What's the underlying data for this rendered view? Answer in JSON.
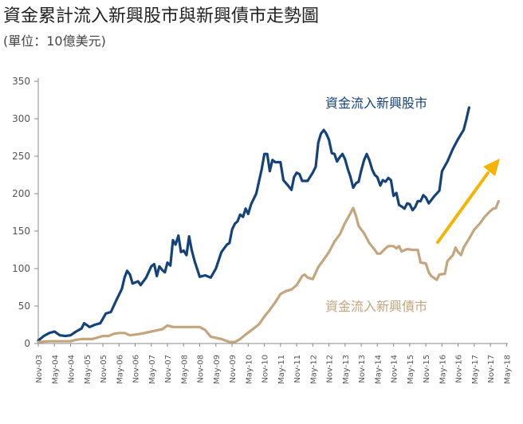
{
  "title": "資金累計流入新興股市與新興債市走勢圖",
  "subtitle": "(單位：10億美元)",
  "colors": {
    "equity": "#14427a",
    "bond": "#c4a57e",
    "arrow": "#f5b400",
    "axis": "#888888"
  },
  "chart_data": {
    "type": "line",
    "title": "資金累計流入新興股市與新興債市走勢圖",
    "subtitle": "(單位：10億美元)",
    "xlabel": "",
    "ylabel": "",
    "ylim": [
      0,
      350
    ],
    "yticks": [
      0,
      50,
      100,
      150,
      200,
      250,
      300,
      350
    ],
    "xlim": [
      2003.83,
      2018.37
    ],
    "grid": false,
    "legend": "inline labels",
    "x_tick_labels": [
      "Nov-03",
      "May-04",
      "Nov-04",
      "May-05",
      "Nov-05",
      "May-06",
      "Nov-06",
      "May-07",
      "Nov-07",
      "May-08",
      "Nov-08",
      "May-09",
      "Nov-09",
      "May-10",
      "Nov-10",
      "May-11",
      "Nov-11",
      "May-12",
      "Nov-12",
      "May-13",
      "Nov-13",
      "May-14",
      "Nov-14",
      "May-15",
      "Nov-15",
      "May-16",
      "Nov-16",
      "May-17",
      "Nov-17",
      "May-18"
    ],
    "series": [
      {
        "name": "資金流入新興股市",
        "color": "#14427a",
        "points": [
          [
            2003.83,
            4
          ],
          [
            2004.0,
            10
          ],
          [
            2004.17,
            14
          ],
          [
            2004.33,
            16
          ],
          [
            2004.5,
            11
          ],
          [
            2004.67,
            10
          ],
          [
            2004.83,
            11
          ],
          [
            2005.0,
            16
          ],
          [
            2005.17,
            20
          ],
          [
            2005.25,
            27
          ],
          [
            2005.42,
            22
          ],
          [
            2005.58,
            25
          ],
          [
            2005.75,
            27
          ],
          [
            2005.92,
            40
          ],
          [
            2006.08,
            42
          ],
          [
            2006.25,
            58
          ],
          [
            2006.42,
            73
          ],
          [
            2006.5,
            88
          ],
          [
            2006.58,
            97
          ],
          [
            2006.67,
            92
          ],
          [
            2006.75,
            80
          ],
          [
            2006.92,
            83
          ],
          [
            2007.0,
            78
          ],
          [
            2007.17,
            88
          ],
          [
            2007.33,
            103
          ],
          [
            2007.42,
            106
          ],
          [
            2007.5,
            90
          ],
          [
            2007.58,
            103
          ],
          [
            2007.67,
            98
          ],
          [
            2007.75,
            95
          ],
          [
            2007.83,
            108
          ],
          [
            2007.92,
            104
          ],
          [
            2008.0,
            138
          ],
          [
            2008.08,
            132
          ],
          [
            2008.17,
            144
          ],
          [
            2008.25,
            122
          ],
          [
            2008.33,
            124
          ],
          [
            2008.42,
            118
          ],
          [
            2008.5,
            143
          ],
          [
            2008.58,
            125
          ],
          [
            2008.67,
            110
          ],
          [
            2008.83,
            89
          ],
          [
            2009.0,
            91
          ],
          [
            2009.17,
            88
          ],
          [
            2009.33,
            100
          ],
          [
            2009.5,
            122
          ],
          [
            2009.67,
            132
          ],
          [
            2009.75,
            134
          ],
          [
            2009.83,
            152
          ],
          [
            2009.92,
            160
          ],
          [
            2010.0,
            163
          ],
          [
            2010.08,
            172
          ],
          [
            2010.17,
            169
          ],
          [
            2010.25,
            180
          ],
          [
            2010.33,
            173
          ],
          [
            2010.42,
            186
          ],
          [
            2010.58,
            200
          ],
          [
            2010.75,
            233
          ],
          [
            2010.83,
            253
          ],
          [
            2010.92,
            253
          ],
          [
            2011.0,
            230
          ],
          [
            2011.08,
            245
          ],
          [
            2011.17,
            242
          ],
          [
            2011.33,
            242
          ],
          [
            2011.42,
            218
          ],
          [
            2011.58,
            210
          ],
          [
            2011.67,
            205
          ],
          [
            2011.75,
            222
          ],
          [
            2011.83,
            228
          ],
          [
            2011.92,
            226
          ],
          [
            2012.0,
            217
          ],
          [
            2012.17,
            217
          ],
          [
            2012.33,
            228
          ],
          [
            2012.42,
            236
          ],
          [
            2012.5,
            268
          ],
          [
            2012.58,
            280
          ],
          [
            2012.67,
            285
          ],
          [
            2012.75,
            280
          ],
          [
            2012.83,
            272
          ],
          [
            2012.92,
            254
          ],
          [
            2013.0,
            253
          ],
          [
            2013.08,
            243
          ],
          [
            2013.17,
            249
          ],
          [
            2013.25,
            253
          ],
          [
            2013.33,
            246
          ],
          [
            2013.42,
            232
          ],
          [
            2013.5,
            222
          ],
          [
            2013.58,
            208
          ],
          [
            2013.67,
            214
          ],
          [
            2013.75,
            216
          ],
          [
            2013.83,
            231
          ],
          [
            2013.92,
            245
          ],
          [
            2014.0,
            253
          ],
          [
            2014.08,
            245
          ],
          [
            2014.17,
            232
          ],
          [
            2014.25,
            225
          ],
          [
            2014.33,
            222
          ],
          [
            2014.42,
            211
          ],
          [
            2014.5,
            218
          ],
          [
            2014.58,
            216
          ],
          [
            2014.67,
            221
          ],
          [
            2014.75,
            218
          ],
          [
            2014.83,
            197
          ],
          [
            2014.92,
            201
          ],
          [
            2015.0,
            185
          ],
          [
            2015.08,
            183
          ],
          [
            2015.17,
            180
          ],
          [
            2015.25,
            187
          ],
          [
            2015.33,
            186
          ],
          [
            2015.42,
            178
          ],
          [
            2015.5,
            182
          ],
          [
            2015.58,
            190
          ],
          [
            2015.67,
            190
          ],
          [
            2015.75,
            198
          ],
          [
            2015.83,
            195
          ],
          [
            2015.92,
            187
          ],
          [
            2016.08,
            196
          ],
          [
            2016.25,
            204
          ],
          [
            2016.33,
            230
          ],
          [
            2016.5,
            243
          ],
          [
            2016.67,
            260
          ],
          [
            2016.83,
            273
          ],
          [
            2017.0,
            285
          ],
          [
            2017.08,
            298
          ],
          [
            2017.17,
            315
          ]
        ]
      },
      {
        "name": "資金流入新興債市",
        "color": "#c4a57e",
        "points": [
          [
            2003.83,
            2
          ],
          [
            2004.17,
            3
          ],
          [
            2004.5,
            3
          ],
          [
            2004.83,
            3
          ],
          [
            2005.0,
            5
          ],
          [
            2005.17,
            6
          ],
          [
            2005.5,
            6
          ],
          [
            2005.83,
            10
          ],
          [
            2006.0,
            10
          ],
          [
            2006.17,
            13
          ],
          [
            2006.33,
            14
          ],
          [
            2006.5,
            14
          ],
          [
            2006.67,
            11
          ],
          [
            2007.0,
            13
          ],
          [
            2007.33,
            16
          ],
          [
            2007.67,
            19
          ],
          [
            2007.83,
            24
          ],
          [
            2008.0,
            22
          ],
          [
            2008.17,
            22
          ],
          [
            2008.5,
            22
          ],
          [
            2008.83,
            22
          ],
          [
            2009.0,
            18
          ],
          [
            2009.17,
            9
          ],
          [
            2009.5,
            6
          ],
          [
            2009.75,
            2
          ],
          [
            2009.92,
            2
          ],
          [
            2010.08,
            6
          ],
          [
            2010.25,
            12
          ],
          [
            2010.5,
            20
          ],
          [
            2010.67,
            26
          ],
          [
            2010.83,
            36
          ],
          [
            2011.0,
            45
          ],
          [
            2011.17,
            55
          ],
          [
            2011.33,
            66
          ],
          [
            2011.5,
            70
          ],
          [
            2011.67,
            72
          ],
          [
            2011.83,
            78
          ],
          [
            2012.0,
            90
          ],
          [
            2012.08,
            92
          ],
          [
            2012.17,
            88
          ],
          [
            2012.33,
            86
          ],
          [
            2012.5,
            102
          ],
          [
            2012.67,
            112
          ],
          [
            2012.83,
            122
          ],
          [
            2013.0,
            136
          ],
          [
            2013.17,
            146
          ],
          [
            2013.33,
            161
          ],
          [
            2013.5,
            174
          ],
          [
            2013.58,
            181
          ],
          [
            2013.67,
            170
          ],
          [
            2013.75,
            157
          ],
          [
            2013.92,
            147
          ],
          [
            2014.08,
            134
          ],
          [
            2014.25,
            125
          ],
          [
            2014.33,
            120
          ],
          [
            2014.42,
            120
          ],
          [
            2014.58,
            127
          ],
          [
            2014.67,
            130
          ],
          [
            2014.83,
            130
          ],
          [
            2014.92,
            127
          ],
          [
            2015.0,
            130
          ],
          [
            2015.08,
            123
          ],
          [
            2015.25,
            126
          ],
          [
            2015.42,
            125
          ],
          [
            2015.58,
            125
          ],
          [
            2015.67,
            108
          ],
          [
            2015.83,
            107
          ],
          [
            2015.92,
            95
          ],
          [
            2016.0,
            90
          ],
          [
            2016.17,
            85
          ],
          [
            2016.25,
            92
          ],
          [
            2016.42,
            93
          ],
          [
            2016.5,
            110
          ],
          [
            2016.67,
            118
          ],
          [
            2016.75,
            128
          ],
          [
            2016.83,
            122
          ],
          [
            2016.92,
            118
          ],
          [
            2017.0,
            128
          ],
          [
            2017.17,
            140
          ],
          [
            2017.33,
            152
          ],
          [
            2017.5,
            160
          ],
          [
            2017.67,
            170
          ],
          [
            2017.83,
            177
          ],
          [
            2017.92,
            180
          ],
          [
            2018.0,
            181
          ],
          [
            2018.08,
            190
          ]
        ]
      }
    ]
  }
}
